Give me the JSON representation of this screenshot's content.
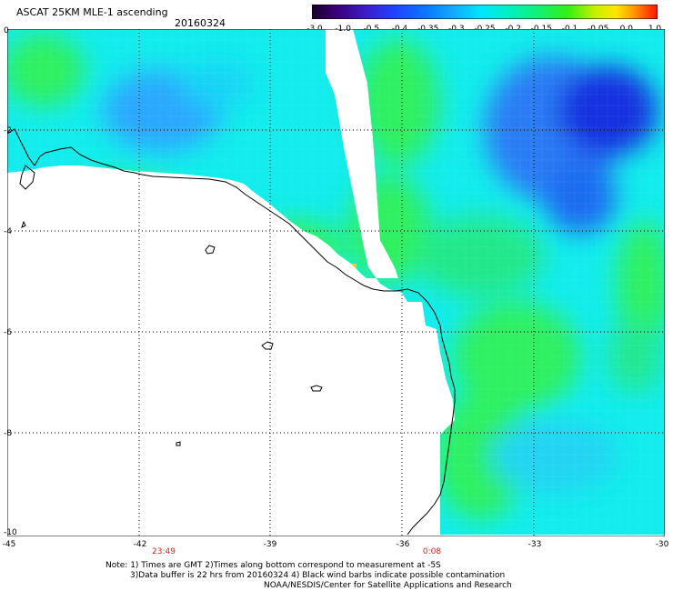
{
  "header": {
    "title": "ASCAT 25KM MLE-1 ascending",
    "date": "20160324"
  },
  "colorbar": {
    "labels": [
      "-3.0",
      "-1.0",
      "-0.5",
      "-0.4",
      "-0.35",
      "-0.3",
      "-0.25",
      "-0.2",
      "-0.15",
      "-0.1",
      "-0.05",
      "0.0",
      "1.0"
    ],
    "colors": [
      "#180028",
      "#3a0078",
      "#3c1ecc",
      "#1e44ff",
      "#0a78ff",
      "#12aaff",
      "#00e6ff",
      "#00f0c0",
      "#14f070",
      "#32f014",
      "#c8f000",
      "#ffe600",
      "#ff9a00",
      "#ff4a00",
      "#ff1400"
    ]
  },
  "map": {
    "lat_labels": [
      "0",
      "-2",
      "-4",
      "-6",
      "-8",
      "-10"
    ],
    "lon_labels": [
      "-45",
      "-42",
      "-39",
      "-36",
      "-33",
      "-30"
    ],
    "times": [
      "23:49",
      "0:08"
    ],
    "colors": {
      "field_cyan": "#12ecec",
      "field_green": "#2ef060",
      "field_blue": "#2a7cf4",
      "deep_blue": "#1230e0",
      "yellow": "#f2cc10"
    }
  },
  "notes": {
    "line1": "Note: 1) Times are GMT 2)Times along bottom correspond to measurement at -5S",
    "line2": "3)Data buffer is 22 hrs from 20160324 4) Black wind barbs indicate possible contamination",
    "line3": "NOAA/NESDIS/Center for Satellite Applications and Research"
  }
}
